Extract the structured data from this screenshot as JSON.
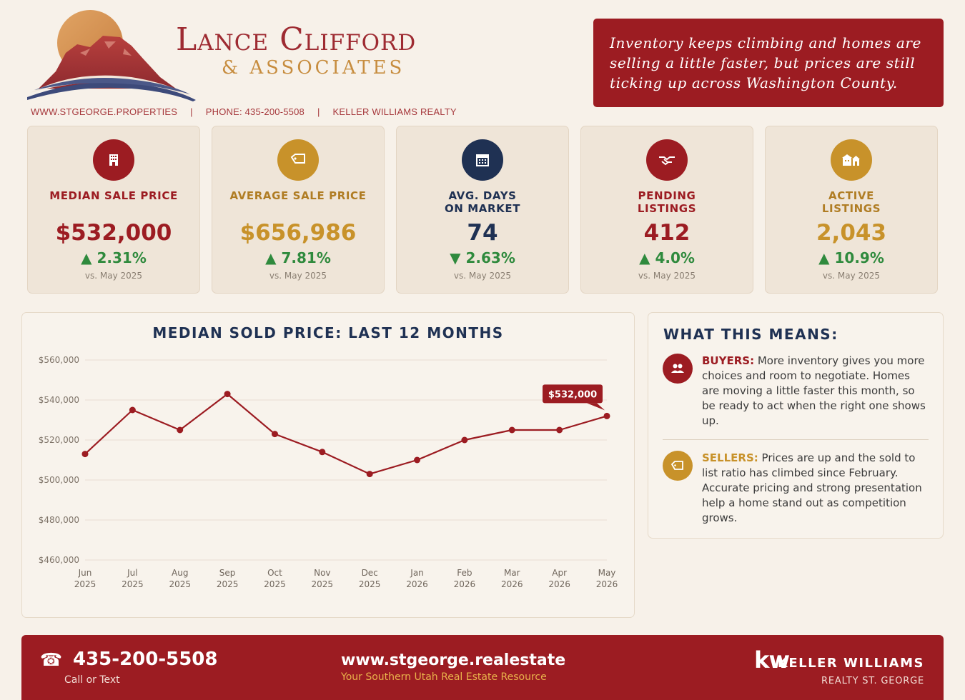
{
  "header": {
    "brand_name": "Lance Clifford",
    "brand_sub": "& ASSOCIATES",
    "contact": {
      "website": "WWW.STGEORGE.PROPERTIES",
      "phone": "PHONE: 435-200-5508",
      "brokerage": "KELLER WILLIAMS REALTY",
      "separator": "|"
    },
    "headline": "Inventory keeps climbing and homes are selling a little faster, but prices are still ticking up across Washington County."
  },
  "stats": [
    {
      "label": "MEDIAN SALE PRICE",
      "value": "$532,000",
      "arrow": "▲",
      "change": "2.31%",
      "compare": "vs. May 2025",
      "icon": "building-icon",
      "color": "#9c1c22"
    },
    {
      "label": "AVERAGE SALE PRICE",
      "value": "$656,986",
      "arrow": "▲",
      "change": "7.81%",
      "compare": "vs. May 2025",
      "icon": "price-tag-icon",
      "color": "#c8922a"
    },
    {
      "label": "AVG. DAYS\nON MARKET",
      "value": "74",
      "arrow": "▼",
      "change": "2.63%",
      "compare": "vs. May 2025",
      "icon": "calendar-icon",
      "color": "#1f3153"
    },
    {
      "label": "PENDING\nLISTINGS",
      "value": "412",
      "arrow": "▲",
      "change": "4.0%",
      "compare": "vs. May 2025",
      "icon": "handshake-icon",
      "color": "#9c1c22"
    },
    {
      "label": "ACTIVE\nLISTINGS",
      "value": "2,043",
      "arrow": "▲",
      "change": "10.9%",
      "compare": "vs. May 2025",
      "icon": "houses-icon",
      "color": "#c8922a"
    }
  ],
  "colors": {
    "brand_red": "#9c1c22",
    "gold": "#c8922a",
    "navy": "#1f3153",
    "positive_green": "#2f8a3d",
    "background": "#f7f1e9"
  },
  "chart_data": {
    "type": "line",
    "title": "MEDIAN SOLD PRICE: LAST 12 MONTHS",
    "categories": [
      "Jun 2025",
      "Jul 2025",
      "Aug 2025",
      "Sep 2025",
      "Oct 2025",
      "Nov 2025",
      "Dec 2025",
      "Jan 2026",
      "Feb 2026",
      "Mar 2026",
      "Apr 2026",
      "May 2026"
    ],
    "category_lines": [
      [
        "Jun",
        "2025"
      ],
      [
        "Jul",
        "2025"
      ],
      [
        "Aug",
        "2025"
      ],
      [
        "Sep",
        "2025"
      ],
      [
        "Oct",
        "2025"
      ],
      [
        "Nov",
        "2025"
      ],
      [
        "Dec",
        "2025"
      ],
      [
        "Jan",
        "2026"
      ],
      [
        "Feb",
        "2026"
      ],
      [
        "Mar",
        "2026"
      ],
      [
        "Apr",
        "2026"
      ],
      [
        "May",
        "2026"
      ]
    ],
    "values": [
      513000,
      535000,
      525000,
      543000,
      523000,
      514000,
      503000,
      510000,
      520000,
      525000,
      525000,
      532000
    ],
    "ylim": [
      460000,
      560000
    ],
    "yticks": [
      460000,
      480000,
      500000,
      520000,
      540000,
      560000
    ],
    "ytick_labels": [
      "$460,000",
      "$480,000",
      "$500,000",
      "$520,000",
      "$540,000",
      "$560,000"
    ],
    "callout": {
      "index": 11,
      "label": "$532,000"
    },
    "line_color": "#9c1c22",
    "grid": true,
    "xlabel": "",
    "ylabel": ""
  },
  "meaning": {
    "title": "WHAT THIS MEANS:",
    "buyers": {
      "lead": "BUYERS:",
      "text": " More inventory gives you more choices and room to negotiate. Homes are moving a little faster this month, so be ready to act when the right one shows up.",
      "icon": "people-icon"
    },
    "sellers": {
      "lead": "SELLERS:",
      "text": " Prices are up and the sold to list ratio has climbed since February. Accurate pricing and strong presentation help a home stand out as competition grows.",
      "icon": "price-tag-icon"
    }
  },
  "footer": {
    "phone_icon": "☎",
    "phone": "435-200-5508",
    "phone_sub": "Call or Text",
    "website": "www.stgeorge.realestate",
    "tagline": "Your Southern Utah Real Estate Resource",
    "kw_logo": "kw",
    "kw_name": "KELLER WILLIAMS",
    "kw_sub": "REALTY ST. GEORGE"
  }
}
